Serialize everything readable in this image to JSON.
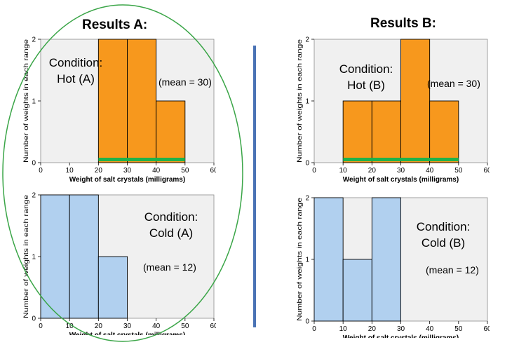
{
  "results_a_title": "Results  A:",
  "results_b_title": "Results  B:",
  "colors": {
    "hot": "#f7981d",
    "cold": "#b1d0ef",
    "range_bar": "#1fb24a",
    "divider": "#4a73b5",
    "ellipse": "#3aa547",
    "panel_bg": "#f0f0f0"
  },
  "chart_data": [
    {
      "id": "hot_a",
      "type": "bar",
      "histogram": true,
      "title": "Condition: Hot (A)",
      "condition_label": [
        "Condition:",
        "Hot (A)"
      ],
      "mean_label": "(mean = 30)",
      "xlabel": "Weight of salt crystals (milligrams)",
      "ylabel": "Number of weights in each range",
      "xlim": [
        0,
        60
      ],
      "ylim": [
        0,
        2
      ],
      "xticks": [
        0,
        10,
        20,
        30,
        40,
        50,
        60
      ],
      "yticks": [
        0,
        1,
        2
      ],
      "bins": [
        {
          "x0": 20,
          "x1": 30,
          "count": 2
        },
        {
          "x0": 30,
          "x1": 40,
          "count": 2
        },
        {
          "x0": 40,
          "x1": 50,
          "count": 1
        }
      ],
      "range_bar": [
        20,
        50
      ],
      "color": "#f7981d"
    },
    {
      "id": "cold_a",
      "type": "bar",
      "histogram": true,
      "title": "Condition: Cold (A)",
      "condition_label": [
        "Condition:",
        "Cold (A)"
      ],
      "mean_label": "(mean = 12)",
      "xlabel": "Weight of salt crystals (milligrams)",
      "ylabel": "Number of weights in each range",
      "xlim": [
        0,
        60
      ],
      "ylim": [
        0,
        2
      ],
      "xticks": [
        0,
        10,
        20,
        30,
        40,
        50,
        60
      ],
      "yticks": [
        0,
        1,
        2
      ],
      "bins": [
        {
          "x0": 0,
          "x1": 10,
          "count": 2
        },
        {
          "x0": 10,
          "x1": 20,
          "count": 2
        },
        {
          "x0": 20,
          "x1": 30,
          "count": 1
        }
      ],
      "color": "#b1d0ef"
    },
    {
      "id": "hot_b",
      "type": "bar",
      "histogram": true,
      "title": "Condition: Hot (B)",
      "condition_label": [
        "Condition:",
        "Hot (B)"
      ],
      "mean_label": "(mean = 30)",
      "xlabel": "Weight of salt crystals (milligrams)",
      "ylabel": "Number of weights in each range",
      "xlim": [
        0,
        60
      ],
      "ylim": [
        0,
        2
      ],
      "xticks": [
        0,
        10,
        20,
        30,
        40,
        50,
        60
      ],
      "yticks": [
        0,
        1,
        2
      ],
      "bins": [
        {
          "x0": 10,
          "x1": 20,
          "count": 1
        },
        {
          "x0": 20,
          "x1": 30,
          "count": 1
        },
        {
          "x0": 30,
          "x1": 40,
          "count": 2
        },
        {
          "x0": 40,
          "x1": 50,
          "count": 1
        }
      ],
      "range_bar": [
        10,
        50
      ],
      "color": "#f7981d"
    },
    {
      "id": "cold_b",
      "type": "bar",
      "histogram": true,
      "title": "Condition: Cold (B)",
      "condition_label": [
        "Condition:",
        "Cold (B)"
      ],
      "mean_label": "(mean = 12)",
      "xlabel": "Weight of salt crystals (milligrams)",
      "ylabel": "Number of weights in each range",
      "xlim": [
        0,
        60
      ],
      "ylim": [
        0,
        2
      ],
      "xticks": [
        0,
        10,
        20,
        30,
        40,
        50,
        60
      ],
      "yticks": [
        0,
        1,
        2
      ],
      "bins": [
        {
          "x0": 0,
          "x1": 10,
          "count": 2
        },
        {
          "x0": 10,
          "x1": 20,
          "count": 1
        },
        {
          "x0": 20,
          "x1": 30,
          "count": 2
        }
      ],
      "color": "#b1d0ef"
    }
  ]
}
